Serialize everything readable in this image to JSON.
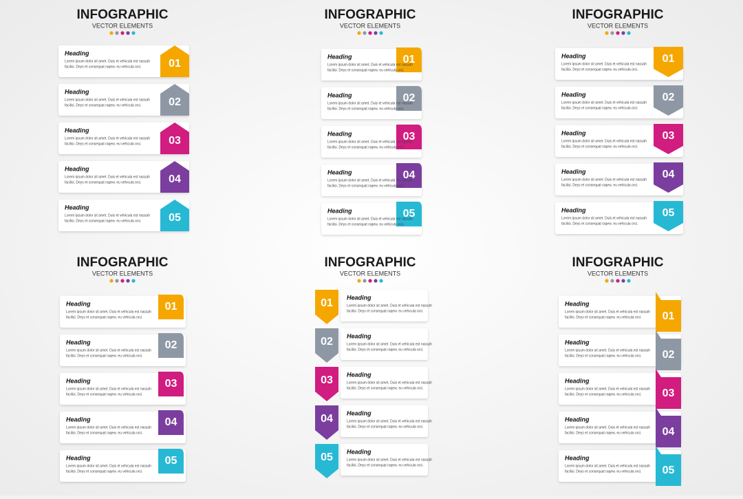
{
  "panels": [
    {
      "title": "INFOGRAPHIC",
      "subtitle": "VECTOR ELEMENTS",
      "items": [
        {
          "number": "01",
          "heading": "Heading",
          "lines": [
            "Lorem ipsum dolor sit amet. Duis et vehicula est nassah",
            "facilisi. Deys et consequat raqew. eu vehicula orci."
          ]
        },
        {
          "number": "02",
          "heading": "Heading",
          "lines": [
            "Lorem ipsum dolor sit amet. Duis et vehicula est nassah",
            "facilisi. Deys et consequat raqew. eu vehicula orci."
          ]
        },
        {
          "number": "03",
          "heading": "Heading",
          "lines": [
            "Lorem ipsum dolor sit amet. Duis et vehicula est nassah",
            "facilisi. Deys et consequat raqew. eu vehicula orci."
          ]
        },
        {
          "number": "04",
          "heading": "Heading",
          "lines": [
            "Lorem ipsum dolor sit amet. Duis et vehicula est nassah",
            "facilisi. Deys et consequat raqew. eu vehicula orci."
          ]
        },
        {
          "number": "05",
          "heading": "Heading",
          "lines": [
            "Lorem ipsum dolor sit amet. Duis et vehicula est nassah",
            "facilisi. Deys et consequat raqew. eu vehicula orci."
          ]
        }
      ]
    },
    {
      "title": "INFOGRAPHIC",
      "subtitle": "VECTOR ELEMENTS",
      "items": [
        {
          "number": "01",
          "heading": "Heading",
          "lines": [
            "Lorem ipsum dolor sit amet. Duis et vehicula est nassah",
            "facilisi. Deys et consequat raqew. eu vehicula orci."
          ]
        },
        {
          "number": "02",
          "heading": "Heading",
          "lines": [
            "Lorem ipsum dolor sit amet. Duis et vehicula est nassah",
            "facilisi. Deys et consequat raqew. eu vehicula orci."
          ]
        },
        {
          "number": "03",
          "heading": "Heading",
          "lines": [
            "Lorem ipsum dolor sit amet. Duis et vehicula est nassah",
            "facilisi. Deys et consequat raqew. eu vehicula orci."
          ]
        },
        {
          "number": "04",
          "heading": "Heading",
          "lines": [
            "Lorem ipsum dolor sit amet. Duis et vehicula est nassah",
            "facilisi. Deys et consequat raqew. eu vehicula orci."
          ]
        },
        {
          "number": "05",
          "heading": "Heading",
          "lines": [
            "Lorem ipsum dolor sit amet. Duis et vehicula est nassah",
            "facilisi. Deys et consequat raqew. eu vehicula orci."
          ]
        }
      ]
    },
    {
      "title": "INFOGRAPHIC",
      "subtitle": "VECTOR ELEMENTS",
      "items": [
        {
          "number": "01",
          "heading": "Heading",
          "lines": [
            "Lorem ipsum dolor sit amet. Duis et vehicula est nassah",
            "facilisi. Deys et consequat raqew. eu vehicula orci."
          ]
        },
        {
          "number": "02",
          "heading": "Heading",
          "lines": [
            "Lorem ipsum dolor sit amet. Duis et vehicula est nassah",
            "facilisi. Deys et consequat raqew. eu vehicula orci."
          ]
        },
        {
          "number": "03",
          "heading": "Heading",
          "lines": [
            "Lorem ipsum dolor sit amet. Duis et vehicula est nassah",
            "facilisi. Deys et consequat raqew. eu vehicula orci."
          ]
        },
        {
          "number": "04",
          "heading": "Heading",
          "lines": [
            "Lorem ipsum dolor sit amet. Duis et vehicula est nassah",
            "facilisi. Deys et consequat raqew. eu vehicula orci."
          ]
        },
        {
          "number": "05",
          "heading": "Heading",
          "lines": [
            "Lorem ipsum dolor sit amet. Duis et vehicula est nassah",
            "facilisi. Deys et consequat raqew. eu vehicula orci."
          ]
        }
      ]
    },
    {
      "title": "INFOGRAPHIC",
      "subtitle": "VECTOR ELEMENTS",
      "items": [
        {
          "number": "01",
          "heading": "Heading",
          "lines": [
            "Lorem ipsum dolor sit amet. Duis et vehicula est nassah",
            "facilisi. Deys et consequat raqew. eu vehicula orci."
          ]
        },
        {
          "number": "02",
          "heading": "Heading",
          "lines": [
            "Lorem ipsum dolor sit amet. Duis et vehicula est nassah",
            "facilisi. Deys et consequat raqew. eu vehicula orci."
          ]
        },
        {
          "number": "03",
          "heading": "Heading",
          "lines": [
            "Lorem ipsum dolor sit amet. Duis et vehicula est nassah",
            "facilisi. Deys et consequat raqew. eu vehicula orci."
          ]
        },
        {
          "number": "04",
          "heading": "Heading",
          "lines": [
            "Lorem ipsum dolor sit amet. Duis et vehicula est nassah",
            "facilisi. Deys et consequat raqew. eu vehicula orci."
          ]
        },
        {
          "number": "05",
          "heading": "Heading",
          "lines": [
            "Lorem ipsum dolor sit amet. Duis et vehicula est nassah",
            "facilisi. Deys et consequat raqew. eu vehicula orci."
          ]
        }
      ]
    },
    {
      "title": "INFOGRAPHIC",
      "subtitle": "VECTOR ELEMENTS",
      "items": [
        {
          "number": "01",
          "heading": "Heading",
          "lines": [
            "Lorem ipsum dolor sit amet. Duis et vehicula est nassah",
            "facilisi. Deys et consequat raqew. eu vehicula orci."
          ]
        },
        {
          "number": "02",
          "heading": "Heading",
          "lines": [
            "Lorem ipsum dolor sit amet. Duis et vehicula est nassah",
            "facilisi. Deys et consequat raqew. eu vehicula orci."
          ]
        },
        {
          "number": "03",
          "heading": "Heading",
          "lines": [
            "Lorem ipsum dolor sit amet. Duis et vehicula est nassah",
            "facilisi. Deys et consequat raqew. eu vehicula orci."
          ]
        },
        {
          "number": "04",
          "heading": "Heading",
          "lines": [
            "Lorem ipsum dolor sit amet. Duis et vehicula est nassah",
            "facilisi. Deys et consequat raqew. eu vehicula orci."
          ]
        },
        {
          "number": "05",
          "heading": "Heading",
          "lines": [
            "Lorem ipsum dolor sit amet. Duis et vehicula est nassah",
            "facilisi. Deys et consequat raqew. eu vehicula orci."
          ]
        }
      ]
    },
    {
      "title": "INFOGRAPHIC",
      "subtitle": "VECTOR ELEMENTS",
      "items": [
        {
          "number": "01",
          "heading": "Heading",
          "lines": [
            "Lorem ipsum dolor sit amet. Duis et vehicula est nassah",
            "facilisi. Deys et consequat raqew. eu vehicula orci."
          ]
        },
        {
          "number": "02",
          "heading": "Heading",
          "lines": [
            "Lorem ipsum dolor sit amet. Duis et vehicula est nassah",
            "facilisi. Deys et consequat raqew. eu vehicula orci."
          ]
        },
        {
          "number": "03",
          "heading": "Heading",
          "lines": [
            "Lorem ipsum dolor sit amet. Duis et vehicula est nassah",
            "facilisi. Deys et consequat raqew. eu vehicula orci."
          ]
        },
        {
          "number": "04",
          "heading": "Heading",
          "lines": [
            "Lorem ipsum dolor sit amet. Duis et vehicula est nassah",
            "facilisi. Deys et consequat raqew. eu vehicula orci."
          ]
        },
        {
          "number": "05",
          "heading": "Heading",
          "lines": [
            "Lorem ipsum dolor sit amet. Duis et vehicula est nassah",
            "facilisi. Deys et consequat raqew. eu vehicula orci."
          ]
        }
      ]
    }
  ]
}
